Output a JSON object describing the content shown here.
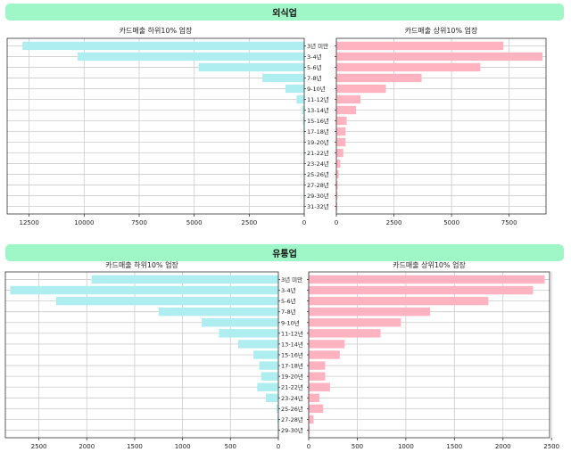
{
  "colors": {
    "banner": "#9ff7c7",
    "low_bar": "#aeeef0",
    "high_bar": "#ffb3c0",
    "grid": "#cccccc",
    "frame": "#333333"
  },
  "sections": [
    {
      "title": "외식업"
    },
    {
      "title": "유통업"
    }
  ],
  "chart_data": [
    {
      "type": "bar",
      "orientation": "horizontal",
      "title": "카드매출 하위10% 업장",
      "categories": [
        "3년 미만",
        "3-4년",
        "5-6년",
        "7-8년",
        "9-10년",
        "11-12년",
        "13-14년",
        "15-16년",
        "17-18년",
        "19-20년",
        "21-22년",
        "23-24년",
        "25-26년",
        "27-28년",
        "29-30년",
        "31-32년"
      ],
      "values": [
        12800,
        10300,
        4800,
        1900,
        850,
        350,
        100,
        60,
        30,
        20,
        15,
        10,
        5,
        5,
        3,
        2
      ],
      "xlim": [
        13500,
        0
      ],
      "xticks": [
        12500,
        10000,
        7500,
        5000,
        2500,
        0
      ],
      "x_reversed": true,
      "grid": true
    },
    {
      "type": "bar",
      "orientation": "horizontal",
      "title": "카드매출 상위10% 업장",
      "categories": [
        "3년 미만",
        "3-4년",
        "5-6년",
        "7-8년",
        "9-10년",
        "11-12년",
        "13-14년",
        "15-16년",
        "17-18년",
        "19-20년",
        "21-22년",
        "23-24년",
        "25-26년",
        "27-28년",
        "29-30년",
        "31-32년"
      ],
      "values": [
        7250,
        8950,
        6250,
        3700,
        2150,
        1050,
        850,
        450,
        400,
        400,
        300,
        170,
        100,
        60,
        50,
        40
      ],
      "xlim": [
        0,
        9100
      ],
      "xticks": [
        0,
        2500,
        5000,
        7500
      ],
      "grid": true
    },
    {
      "type": "bar",
      "orientation": "horizontal",
      "title": "카드매출 하위10% 업장",
      "categories": [
        "3년 미만",
        "3-4년",
        "5-6년",
        "7-8년",
        "9-10년",
        "11-12년",
        "13-14년",
        "15-16년",
        "17-18년",
        "19-20년",
        "21-22년",
        "23-24년",
        "25-26년",
        "27-28년",
        "29-30년"
      ],
      "values": [
        1950,
        2800,
        2320,
        1250,
        800,
        620,
        420,
        260,
        200,
        180,
        220,
        130,
        20,
        10,
        5
      ],
      "xlim": [
        2850,
        0
      ],
      "xticks": [
        2500,
        2000,
        1500,
        1000,
        500,
        0
      ],
      "x_reversed": true,
      "grid": true
    },
    {
      "type": "bar",
      "orientation": "horizontal",
      "title": "카드매출 상위10% 업장",
      "categories": [
        "3년 미만",
        "3-4년",
        "5-6년",
        "7-8년",
        "9-10년",
        "11-12년",
        "13-14년",
        "15-16년",
        "17-18년",
        "19-20년",
        "21-22년",
        "23-24년",
        "25-26년",
        "27-28년",
        "29-30년"
      ],
      "values": [
        2430,
        2310,
        1850,
        1250,
        950,
        740,
        370,
        320,
        170,
        170,
        220,
        110,
        150,
        50,
        10
      ],
      "xlim": [
        0,
        2480
      ],
      "xticks": [
        0,
        500,
        1000,
        1500,
        2000,
        2500
      ],
      "grid": true
    }
  ]
}
